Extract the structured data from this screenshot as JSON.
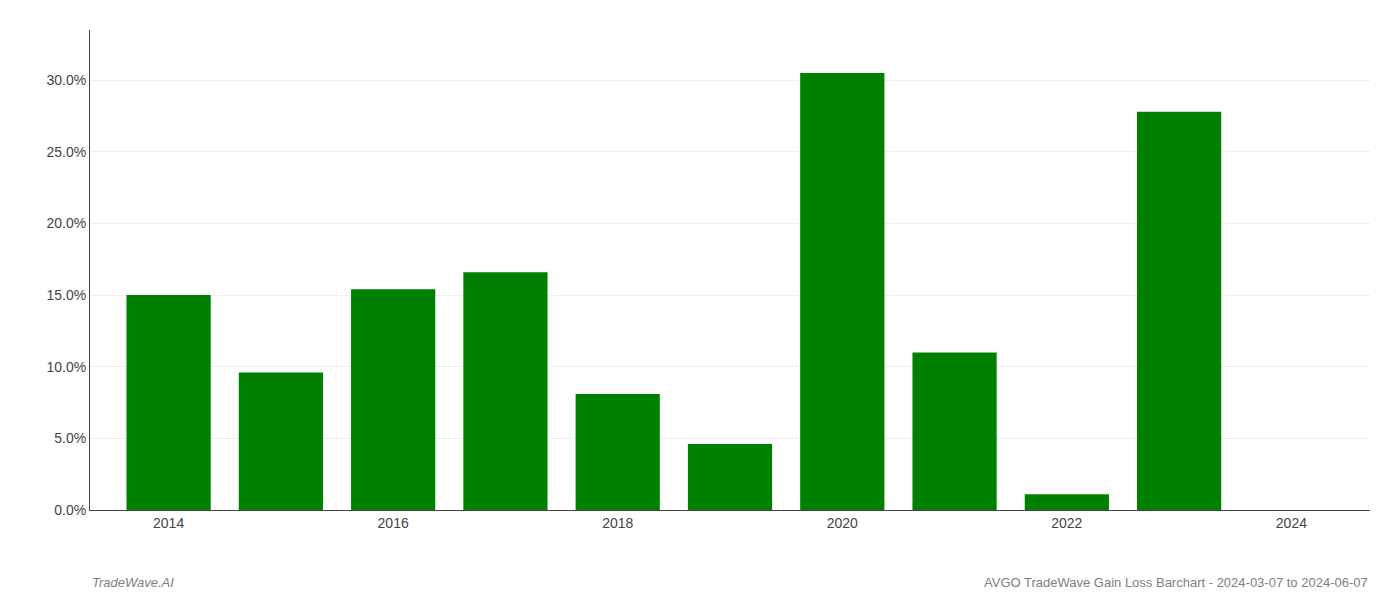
{
  "chart_data": {
    "type": "bar",
    "x": [
      2014,
      2015,
      2016,
      2017,
      2018,
      2019,
      2020,
      2021,
      2022,
      2023,
      2024
    ],
    "values": [
      0.15,
      0.096,
      0.154,
      0.166,
      0.081,
      0.046,
      0.305,
      0.11,
      0.011,
      0.278,
      0.0
    ],
    "color": "#008000",
    "xlim": [
      2013.3,
      2024.7
    ],
    "xticks": [
      2014,
      2016,
      2018,
      2020,
      2022,
      2024
    ],
    "ylim": [
      0,
      0.335
    ],
    "yticks": [
      {
        "value": 0.0,
        "label": "0.0%"
      },
      {
        "value": 0.05,
        "label": "5.0%"
      },
      {
        "value": 0.1,
        "label": "10.0%"
      },
      {
        "value": 0.15,
        "label": "15.0%"
      },
      {
        "value": 0.2,
        "label": "20.0%"
      },
      {
        "value": 0.25,
        "label": "25.0%"
      },
      {
        "value": 0.3,
        "label": "30.0%"
      }
    ],
    "grid": true,
    "annotations": [
      "TradeWave.AI",
      "AVGO TradeWave Gain Loss Barchart - 2024-03-07 to 2024-06-07"
    ]
  }
}
